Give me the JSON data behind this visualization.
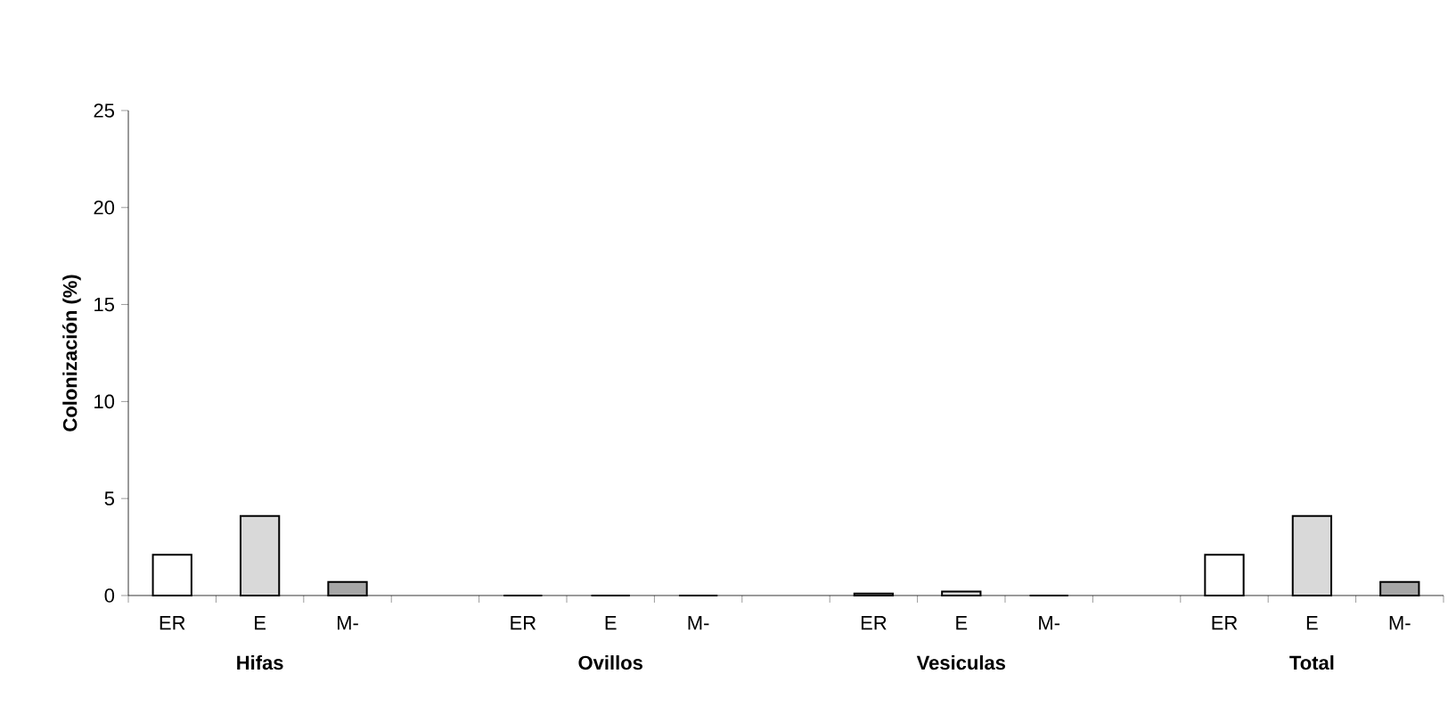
{
  "chart_data": {
    "type": "bar",
    "ylabel": "Colonización (%)",
    "categories": [
      "ER",
      "E",
      "M-",
      null,
      "ER",
      "E",
      "M-",
      null,
      "ER",
      "E",
      "M-",
      null,
      "ER",
      "E",
      "M-"
    ],
    "values": [
      2.1,
      4.1,
      0.7,
      null,
      0,
      0,
      0,
      null,
      0.1,
      0.2,
      0,
      null,
      2.1,
      4.1,
      0.7
    ],
    "colors": [
      "#ffffff",
      "#d9d9d9",
      "#a6a6a6",
      "#ffffff",
      "#ffffff",
      "#d9d9d9",
      "#a6a6a6",
      "#ffffff",
      "#ffffff",
      "#d9d9d9",
      "#a6a6a6",
      "#ffffff",
      "#ffffff",
      "#d9d9d9",
      "#a6a6a6"
    ],
    "ylim": [
      0,
      25
    ],
    "yticks": [
      0,
      5,
      10,
      15,
      20,
      25
    ],
    "grid": false,
    "annotations": [
      "Hifas",
      "Ovillos",
      "Vesiculas",
      "Total"
    ]
  }
}
